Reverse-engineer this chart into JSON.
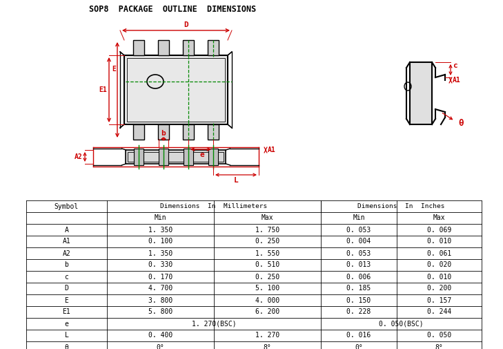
{
  "title": "SOP8  PACKAGE  OUTLINE  DIMENSIONS",
  "title_fontsize": 8.5,
  "table_data": [
    [
      "A",
      "1. 350",
      "1. 750",
      "0. 053",
      "0. 069"
    ],
    [
      "A1",
      "0. 100",
      "0. 250",
      "0. 004",
      "0. 010"
    ],
    [
      "A2",
      "1. 350",
      "1. 550",
      "0. 053",
      "0. 061"
    ],
    [
      "b",
      "0. 330",
      "0. 510",
      "0. 013",
      "0. 020"
    ],
    [
      "c",
      "0. 170",
      "0. 250",
      "0. 006",
      "0. 010"
    ],
    [
      "D",
      "4. 700",
      "5. 100",
      "0. 185",
      "0. 200"
    ],
    [
      "E",
      "3. 800",
      "4. 000",
      "0. 150",
      "0. 157"
    ],
    [
      "E1",
      "5. 800",
      "6. 200",
      "0. 228",
      "0. 244"
    ],
    [
      "e",
      "1. 270(BSC)",
      "",
      "0. 050(BSC)",
      ""
    ],
    [
      "L",
      "0. 400",
      "1. 270",
      "0. 016",
      "0. 050"
    ],
    [
      "θ",
      "0°",
      "8°",
      "0°",
      "8°"
    ]
  ],
  "bg_color": "#ffffff",
  "line_color": "#000000",
  "red_color": "#cc0000",
  "green_color": "#008800"
}
